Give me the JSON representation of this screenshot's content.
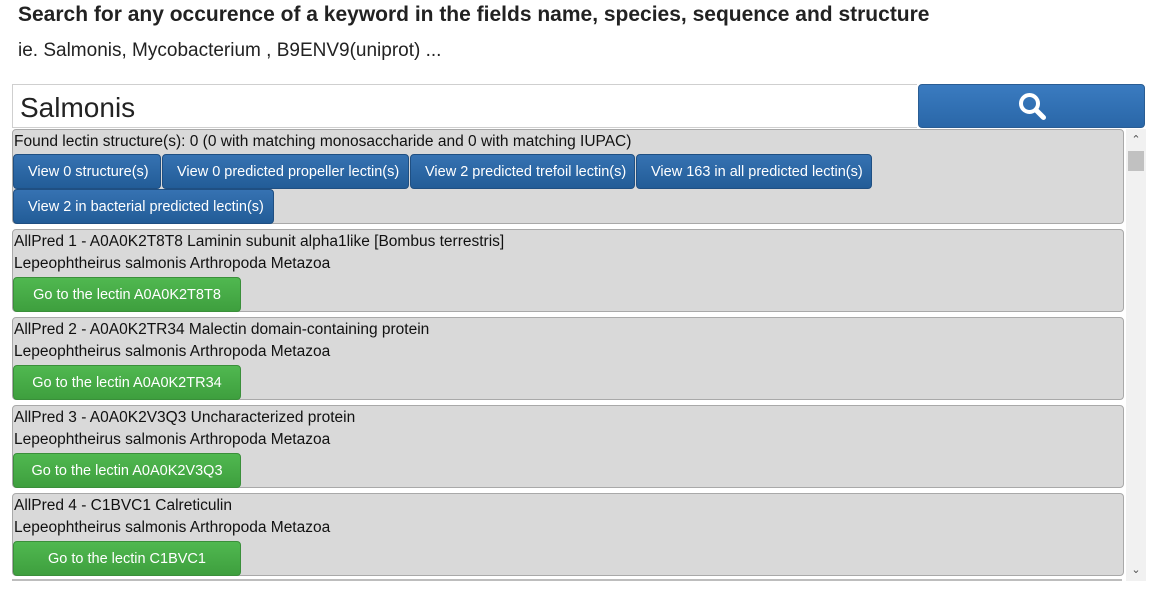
{
  "header": {
    "title": "Search for any occurence of a keyword in the fields name, species, sequence and structure",
    "examples": "ie. Salmonis, Mycobacterium , B9ENV9(uniprot) ..."
  },
  "search": {
    "value": "Salmonis",
    "button_icon": "search-icon"
  },
  "summary": {
    "found_text": "Found lectin structure(s): 0 (0 with matching monosaccharide and 0 with matching IUPAC)",
    "buttons": [
      "View 0 structure(s)",
      "View 0 predicted propeller lectin(s)",
      "View 2 predicted trefoil lectin(s)",
      "View 163 in all predicted lectin(s)",
      "View 2 in bacterial predicted lectin(s)"
    ]
  },
  "results": [
    {
      "title": "AllPred 1 - A0A0K2T8T8 Laminin subunit alpha1like [Bombus terrestris]",
      "taxonomy": "Lepeophtheirus salmonis Arthropoda Metazoa",
      "button": "Go to the lectin A0A0K2T8T8"
    },
    {
      "title": "AllPred 2 - A0A0K2TR34 Malectin domain-containing protein",
      "taxonomy": "Lepeophtheirus salmonis Arthropoda Metazoa",
      "button": "Go to the lectin A0A0K2TR34"
    },
    {
      "title": "AllPred 3 - A0A0K2V3Q3 Uncharacterized protein",
      "taxonomy": "Lepeophtheirus salmonis Arthropoda Metazoa",
      "button": "Go to the lectin A0A0K2V3Q3"
    },
    {
      "title": "AllPred 4 - C1BVC1 Calreticulin",
      "taxonomy": "Lepeophtheirus salmonis Arthropoda Metazoa",
      "button": "Go to the lectin C1BVC1"
    }
  ],
  "scrollbar": {
    "up_icon": "chevron-up-icon",
    "down_icon": "chevron-down-icon"
  },
  "colors": {
    "primary_button": "#2a67a8",
    "go_button": "#46a946",
    "card_background": "#d9d9d9"
  }
}
